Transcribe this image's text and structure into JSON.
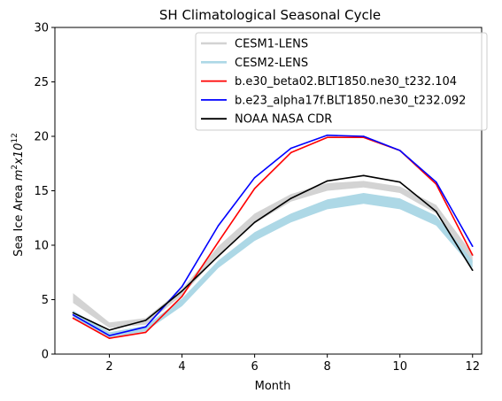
{
  "chart_data": {
    "type": "line",
    "title": "SH Climatological Seasonal Cycle",
    "xlabel": "Month",
    "ylabel_parts": [
      "Sea Ice Area ",
      "m",
      "2",
      "x10",
      "12"
    ],
    "xlim": [
      0.5,
      12.25
    ],
    "ylim": [
      0,
      30
    ],
    "xticks": [
      2,
      4,
      6,
      8,
      10,
      12
    ],
    "yticks": [
      0,
      5,
      10,
      15,
      20,
      25,
      30
    ],
    "legend_position": "top-right",
    "grid": false,
    "x": [
      1,
      2,
      3,
      4,
      5,
      6,
      7,
      8,
      9,
      10,
      11,
      12
    ],
    "bands": [
      {
        "name": "CESM1-LENS",
        "color": "#d3d3d3",
        "lower": [
          4.7,
          2.4,
          2.7,
          5.4,
          9.0,
          12.0,
          14.0,
          15.0,
          15.3,
          14.8,
          12.9,
          8.4
        ],
        "upper": [
          5.6,
          2.9,
          3.3,
          6.0,
          9.9,
          12.9,
          14.7,
          15.7,
          15.9,
          15.4,
          13.7,
          9.2
        ]
      },
      {
        "name": "CESM2-LENS",
        "color": "#add8e6",
        "lower": [
          3.3,
          1.5,
          2.1,
          4.4,
          7.9,
          10.4,
          12.1,
          13.3,
          13.8,
          13.3,
          11.8,
          7.9
        ],
        "upper": [
          4.0,
          2.0,
          2.6,
          5.1,
          8.6,
          11.2,
          12.9,
          14.2,
          14.8,
          14.3,
          12.7,
          8.6
        ]
      }
    ],
    "series": [
      {
        "name": "b.e30_beta02.BLT1850.ne30_t232.104",
        "color": "#ff0000",
        "values": [
          3.3,
          1.45,
          2.0,
          5.3,
          10.3,
          15.2,
          18.5,
          19.9,
          19.9,
          18.7,
          15.6,
          9.1
        ]
      },
      {
        "name": "b.e23_alpha17f.BLT1850.ne30_t232.092",
        "color": "#0000ff",
        "values": [
          3.6,
          1.7,
          2.5,
          6.2,
          11.8,
          16.2,
          18.9,
          20.1,
          20.0,
          18.7,
          15.8,
          9.9
        ]
      },
      {
        "name": "NOAA NASA CDR",
        "color": "#000000",
        "values": [
          3.8,
          2.2,
          3.1,
          5.8,
          9.0,
          12.1,
          14.3,
          15.9,
          16.4,
          15.8,
          13.1,
          7.7
        ]
      }
    ]
  }
}
